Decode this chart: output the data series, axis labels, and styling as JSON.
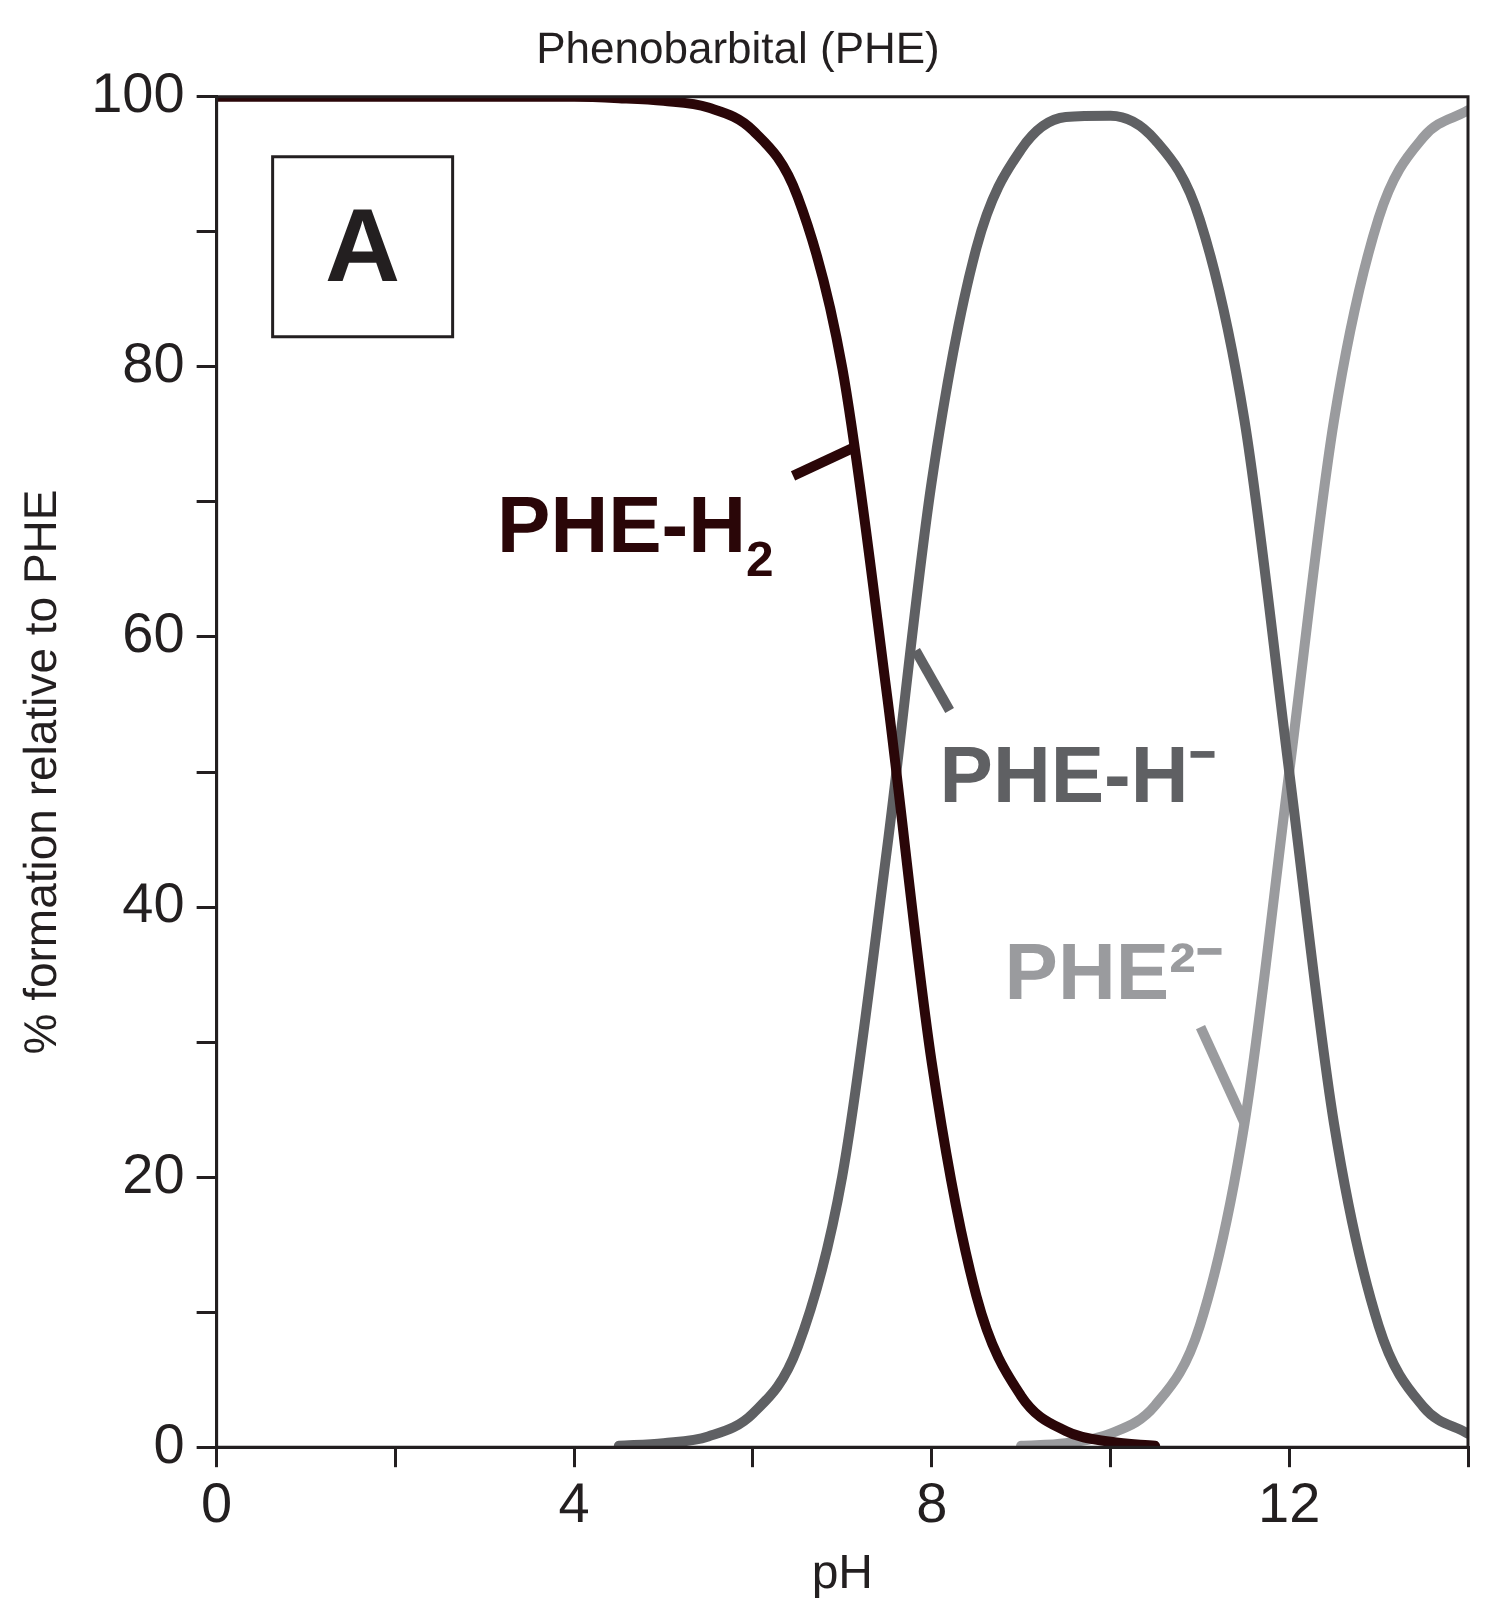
{
  "chart_data": {
    "type": "line",
    "title": "Phenobarbital (PHE)",
    "xlabel": "pH",
    "ylabel": "% formation relative to PHE",
    "xlim": [
      0,
      14
    ],
    "xticks": [
      0,
      {
        "value": 2,
        "label": null
      },
      4,
      {
        "value": 6,
        "label": null
      },
      8,
      {
        "value": 10,
        "label": null
      },
      12,
      {
        "value": 14,
        "label": null
      }
    ],
    "ylim": [
      0,
      100
    ],
    "yticks": [
      0,
      {
        "value": 10,
        "label": null
      },
      20,
      {
        "value": 30,
        "label": null
      },
      40,
      {
        "value": 50,
        "label": null
      },
      60,
      {
        "value": 70,
        "label": null
      },
      80,
      {
        "value": 90,
        "label": null
      },
      100
    ],
    "grid": false,
    "legend": "center",
    "marker": "none",
    "line_style": "solid",
    "annotations": [
      "A"
    ],
    "series": [
      {
        "name": "PHE-H$_{2}$",
        "color": "#2a0608",
        "x": [
          0,
          1,
          2,
          3,
          4,
          4.5,
          5,
          5.5,
          6,
          6.5,
          7,
          7.5,
          8,
          8.5,
          9,
          9.5,
          10,
          10.5
        ],
        "values": [
          100,
          100,
          100,
          100,
          100,
          99.9,
          99.7,
          99.2,
          97.5,
          92.6,
          79.9,
          55.7,
          28.5,
          11.2,
          3.8,
          1.2,
          0.4,
          0.1
        ]
      },
      {
        "name": "PHE-H⁻",
        "color": "#5f6063",
        "x": [
          4.5,
          5,
          5.5,
          6,
          6.5,
          7,
          7.5,
          8,
          8.5,
          9,
          9.5,
          10,
          10.5,
          11,
          11.5,
          12,
          12.5,
          13,
          13.5,
          14
        ],
        "values": [
          0.1,
          0.3,
          0.8,
          2.5,
          7.4,
          20.1,
          44.3,
          71.5,
          88.8,
          96.1,
          98.5,
          98.6,
          96.8,
          90.9,
          76,
          50,
          24,
          9,
          3,
          1
        ]
      },
      {
        "name": "PHE²⁻",
        "color": "#9a9b9e",
        "x": [
          9,
          9.5,
          10,
          10.5,
          11,
          11.5,
          12,
          12.5,
          13,
          13.5,
          14
        ],
        "values": [
          0.1,
          0.3,
          1,
          3.1,
          9,
          24,
          50,
          76,
          91,
          97,
          99
        ]
      }
    ]
  }
}
